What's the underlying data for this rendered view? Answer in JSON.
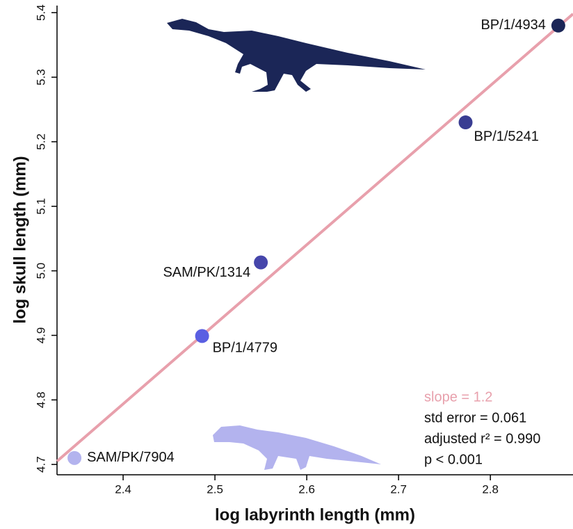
{
  "chart_data": {
    "type": "scatter",
    "xlabel": "log labyrinth length (mm)",
    "ylabel": "log skull length (mm)",
    "xlim": [
      2.328,
      2.89
    ],
    "ylim": [
      4.684,
      5.411
    ],
    "xticks": [
      2.4,
      2.5,
      2.6,
      2.7,
      2.8
    ],
    "yticks": [
      4.7,
      4.8,
      4.9,
      5.0,
      5.1,
      5.2,
      5.3,
      5.4
    ],
    "points": {
      "labels": [
        "BP/1/4934",
        "BP/1/5241",
        "SAM/PK/1314",
        "BP/1/4779",
        "SAM/PK/7904"
      ],
      "x": [
        2.874,
        2.773,
        2.55,
        2.486,
        2.347
      ],
      "y": [
        5.38,
        5.23,
        5.013,
        4.899,
        4.71
      ],
      "colors": [
        "#1b2657",
        "#393d92",
        "#4646ab",
        "#5a5fe2",
        "#b3b3ee"
      ]
    },
    "fit": {
      "x": [
        2.328,
        2.89
      ],
      "y": [
        4.705,
        5.398
      ],
      "color": "#e8a0ac"
    },
    "annotations": {
      "slope": "slope = 1.2",
      "std_error": "std error = 0.061",
      "r2": "adjusted r² = 0.990",
      "p": "p < 0.001"
    },
    "slope_color": "#e8a0ac"
  }
}
